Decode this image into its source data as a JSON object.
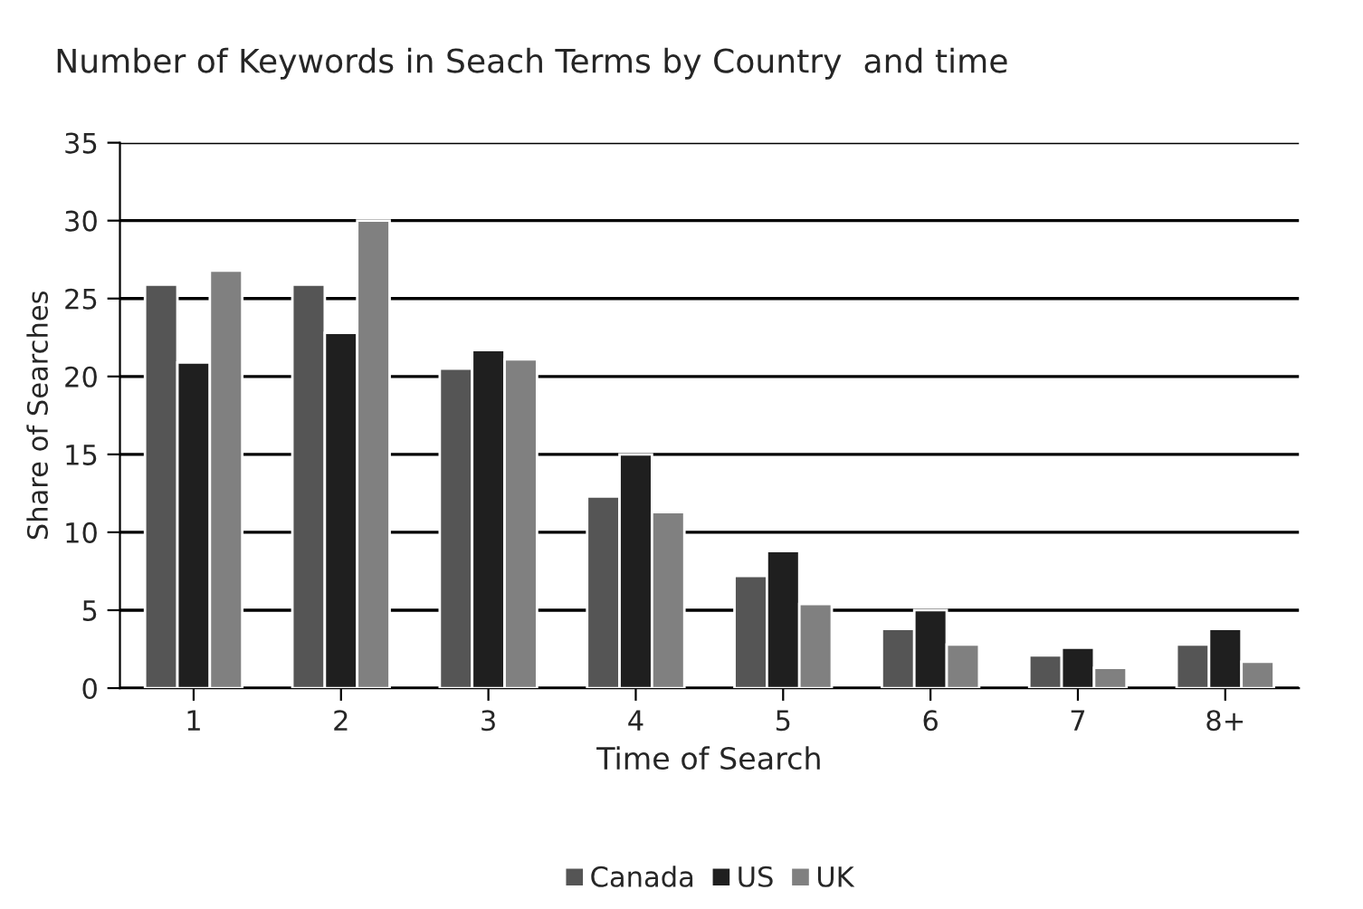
{
  "chart_data": {
    "type": "bar",
    "title": "Number of Keywords in Seach Terms by Country  and time",
    "xlabel": "Time of Search",
    "ylabel": "Share of Searches",
    "categories": [
      "1",
      "2",
      "3",
      "4",
      "5",
      "6",
      "7",
      "8+"
    ],
    "series": [
      {
        "name": "Canada",
        "color": "#555555",
        "values": [
          25.9,
          25.9,
          20.5,
          12.3,
          7.2,
          3.8,
          2.1,
          2.8
        ]
      },
      {
        "name": "US",
        "color": "#1f1f1f",
        "values": [
          20.9,
          22.8,
          21.7,
          15,
          8.8,
          5,
          2.6,
          3.8
        ]
      },
      {
        "name": "UK",
        "color": "#808080",
        "values": [
          26.8,
          30,
          21.1,
          11.3,
          5.4,
          2.8,
          1.3,
          1.7
        ]
      }
    ],
    "ylim": [
      0,
      35
    ],
    "yticks": [
      0,
      5,
      10,
      15,
      20,
      25,
      30,
      35
    ],
    "grid": "y",
    "legend": "bottom"
  }
}
